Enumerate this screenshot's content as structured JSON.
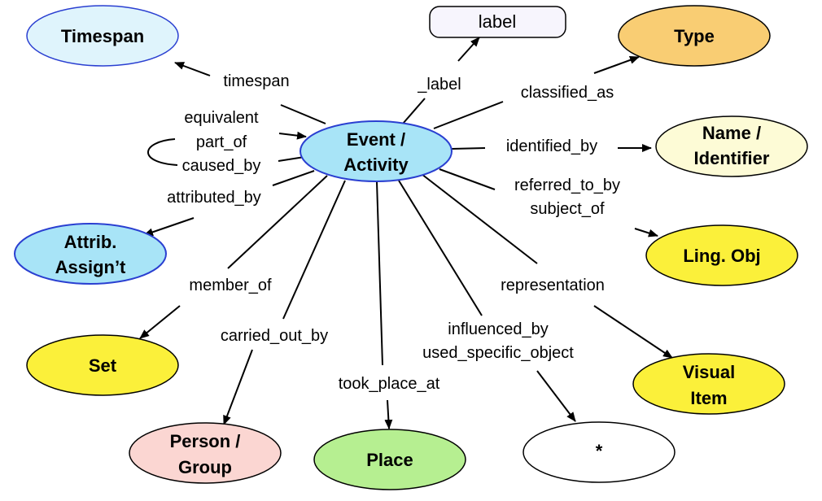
{
  "nodes": {
    "event": {
      "line1": "Event /",
      "line2": "Activity",
      "color": "#a8e4f7"
    },
    "timespan": {
      "text": "Timespan",
      "color": "#dff4fc"
    },
    "label": {
      "text": "label",
      "color": "#f7f5fd"
    },
    "type": {
      "text": "Type",
      "color": "#f9cd73"
    },
    "name": {
      "line1": "Name /",
      "line2": "Identifier",
      "color": "#fdfbd6"
    },
    "attrib": {
      "line1": "Attrib.",
      "line2": "Assign’t",
      "color": "#a8e4f7"
    },
    "lingobj": {
      "text": "Ling. Obj",
      "color": "#fbf03a"
    },
    "set": {
      "text": "Set",
      "color": "#fbf03a"
    },
    "visual": {
      "line1": "Visual",
      "line2": "Item",
      "color": "#fbf03a"
    },
    "person": {
      "line1": "Person /",
      "line2": "Group",
      "color": "#fbd6d2"
    },
    "place": {
      "text": "Place",
      "color": "#b6ef91"
    },
    "star": {
      "text": "*",
      "color": "#ffffff"
    }
  },
  "edges": {
    "timespan": "timespan",
    "label": "_label",
    "classified_as": "classified_as",
    "equivalent": "equivalent",
    "part_of": "part_of",
    "caused_by": "caused_by",
    "identified_by": "identified_by",
    "attributed_by": "attributed_by",
    "referred_to_by": "referred_to_by",
    "subject_of": "subject_of",
    "member_of": "member_of",
    "representation": "representation",
    "carried_out_by": "carried_out_by",
    "influenced_by": "influenced_by",
    "used_specific_object": "used_specific_object",
    "took_place_at": "took_place_at"
  }
}
